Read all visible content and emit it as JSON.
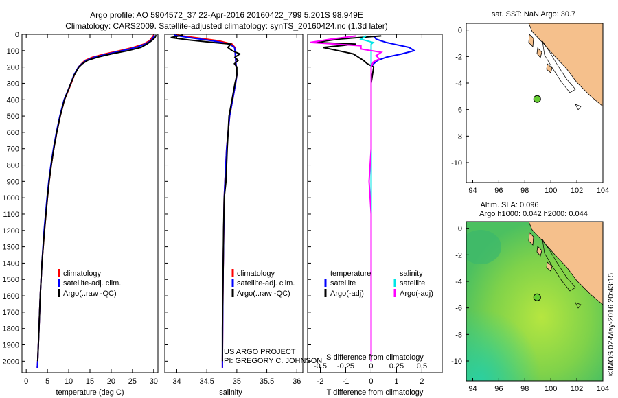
{
  "header": {
    "line1": "Argo profile: AO 5904572_37 22-Apr-2016 20160422_799 5.201S 98.949E",
    "line2": "Climatology: CARS2009. Satellite-adjusted climatology: synTS_20160424.nc (1.3d later)"
  },
  "colors": {
    "climatology": "#ff0000",
    "satellite": "#0000ff",
    "argo": "#000000",
    "sat_s": "#00e5e5",
    "argo_s": "#ff00ff",
    "land": "#f5c08c",
    "marker": "#66cc33"
  },
  "chart_data": [
    {
      "type": "line",
      "id": "temperature",
      "xlabel": "temperature (deg C)",
      "ylabel": "",
      "xlim": [
        -1,
        31
      ],
      "ylim": [
        2070,
        0
      ],
      "xticks": [
        "0",
        "5",
        "10",
        "15",
        "20",
        "25",
        "30"
      ],
      "yticks": [
        "0",
        "100",
        "200",
        "300",
        "400",
        "500",
        "600",
        "700",
        "800",
        "900",
        "1000",
        "1100",
        "1200",
        "1300",
        "1400",
        "1500",
        "1600",
        "1700",
        "1800",
        "1900",
        "2000"
      ],
      "legend": [
        "climatology",
        "satellite-adj. clim.",
        "Argo(..raw -QC)"
      ],
      "series": [
        {
          "name": "climatology",
          "color": "#ff0000",
          "depth": [
            5,
            20,
            40,
            60,
            80,
            100,
            120,
            140,
            160,
            180,
            200,
            250,
            300,
            400,
            500,
            600,
            700,
            800,
            900,
            1000,
            1200,
            1400,
            1600,
            1800,
            2000,
            2040
          ],
          "values": [
            30.0,
            29.6,
            29.0,
            27.6,
            25.2,
            22.0,
            18.5,
            15.6,
            13.8,
            13.0,
            12.3,
            11.3,
            10.6,
            9.0,
            8.0,
            7.2,
            6.5,
            5.9,
            5.4,
            5.0,
            4.3,
            3.7,
            3.3,
            3.0,
            2.7,
            2.6
          ]
        },
        {
          "name": "satellite-adj. clim.",
          "color": "#0000ff",
          "depth": [
            5,
            20,
            40,
            60,
            80,
            100,
            120,
            140,
            160,
            180,
            200,
            250,
            300,
            400,
            500,
            600,
            700,
            800,
            900,
            1000,
            1200,
            1400,
            1600,
            1800,
            2000,
            2040
          ],
          "values": [
            30.2,
            29.9,
            29.3,
            28.0,
            25.8,
            22.6,
            19.2,
            16.1,
            14.1,
            13.1,
            12.3,
            11.2,
            10.5,
            8.9,
            7.9,
            7.1,
            6.4,
            5.8,
            5.3,
            4.9,
            4.2,
            3.7,
            3.3,
            3.0,
            2.7,
            2.6
          ]
        },
        {
          "name": "Argo(..raw -QC)",
          "color": "#000000",
          "depth": [
            5,
            20,
            40,
            60,
            80,
            100,
            120,
            140,
            160,
            180,
            200,
            250,
            300,
            400,
            500,
            600,
            700,
            800,
            900,
            1000,
            1200,
            1400,
            1600,
            1800,
            2000
          ],
          "values": [
            30.6,
            30.3,
            29.5,
            28.4,
            27.0,
            24.0,
            20.0,
            16.8,
            14.4,
            13.2,
            12.4,
            11.3,
            10.5,
            9.0,
            8.0,
            7.2,
            6.5,
            5.9,
            5.4,
            5.0,
            4.3,
            3.7,
            3.3,
            3.0,
            2.7
          ]
        }
      ]
    },
    {
      "type": "line",
      "id": "salinity",
      "xlabel": "salinity",
      "xlim": [
        33.8,
        36.1
      ],
      "ylim": [
        2070,
        0
      ],
      "xticks": [
        "34",
        "34.5",
        "35",
        "35.5",
        "36"
      ],
      "legend": [
        "climatology",
        "satellite-adj. clim.",
        "Argo(..raw -QC)"
      ],
      "annotation": [
        "US ARGO PROJECT",
        "PI: GREGORY C. JOHNSON"
      ],
      "series": [
        {
          "name": "climatology",
          "color": "#ff0000",
          "depth": [
            5,
            20,
            40,
            60,
            80,
            100,
            150,
            200,
            250,
            300,
            400,
            500,
            700,
            1000,
            1500,
            2000,
            2040
          ],
          "values": [
            34.0,
            34.3,
            34.7,
            34.92,
            34.97,
            34.97,
            34.98,
            34.99,
            35.0,
            34.98,
            34.93,
            34.88,
            34.83,
            34.79,
            34.77,
            34.76,
            34.76
          ]
        },
        {
          "name": "satellite-adj. clim.",
          "color": "#0000ff",
          "depth": [
            5,
            20,
            40,
            60,
            80,
            100,
            150,
            200,
            250,
            300,
            400,
            500,
            700,
            1000,
            1500,
            2000,
            2040
          ],
          "values": [
            33.95,
            34.2,
            34.6,
            34.88,
            34.96,
            34.97,
            34.98,
            34.99,
            35.0,
            34.98,
            34.93,
            34.88,
            34.83,
            34.79,
            34.77,
            34.76,
            34.76
          ]
        },
        {
          "name": "Argo(..raw -QC)",
          "color": "#000000",
          "depth": [
            5,
            20,
            35,
            50,
            60,
            80,
            100,
            120,
            140,
            160,
            180,
            200,
            250,
            300,
            400,
            500,
            700,
            900,
            1000,
            1200,
            1500,
            1800,
            2000
          ],
          "values": [
            34.1,
            33.9,
            34.2,
            34.6,
            34.9,
            34.85,
            34.92,
            35.05,
            34.97,
            35.02,
            34.96,
            35.0,
            35.0,
            34.97,
            34.92,
            34.87,
            34.84,
            34.82,
            34.79,
            34.78,
            34.77,
            34.76,
            34.76
          ]
        }
      ]
    },
    {
      "type": "line",
      "id": "difference",
      "xlabel": "T difference from climatology",
      "title_inner": "S difference from climatology",
      "xlim": [
        -2.5,
        2.8
      ],
      "ylim": [
        2070,
        0
      ],
      "xticks": [
        "-2",
        "-1",
        "0",
        "1",
        "2"
      ],
      "xticks_top": [
        "-0.5",
        "-0.25",
        "0",
        "0.25",
        "0.5"
      ],
      "legend_headers": [
        "temperature",
        "salinity"
      ],
      "legend": [
        "satellite",
        "Argo(-adj)",
        "satellite",
        "Argo(-adj)"
      ],
      "series": [
        {
          "name": "T satellite",
          "color": "#0000ff",
          "depth": [
            10,
            30,
            50,
            60,
            80,
            100,
            120,
            140,
            160,
            180,
            200,
            300,
            500,
            1000,
            1500,
            2000
          ],
          "values": [
            0.1,
            0.2,
            0.6,
            0.9,
            1.5,
            1.7,
            1.2,
            0.6,
            0.25,
            0.1,
            0.0,
            0.0,
            0.0,
            0.0,
            0.0,
            0.0
          ]
        },
        {
          "name": "T Argo(-adj)",
          "color": "#000000",
          "depth": [
            10,
            30,
            50,
            60,
            80,
            100,
            120,
            140,
            160,
            180,
            200,
            300,
            500,
            800,
            1000,
            1500,
            2000
          ],
          "values": [
            0.4,
            -1.3,
            -2.2,
            -0.6,
            -1.9,
            -1.3,
            -0.7,
            -0.5,
            -0.3,
            -0.15,
            0.1,
            0.0,
            0.0,
            0.0,
            0.0,
            0.0,
            0.0
          ]
        },
        {
          "name": "S satellite",
          "color": "#00e5e5",
          "depth": [
            10,
            30,
            50,
            60,
            80,
            100,
            150,
            200,
            500,
            1000,
            1500,
            2000
          ],
          "values": [
            -0.05,
            -0.1,
            0.02,
            0.0,
            0.0,
            0.0,
            0.0,
            0.0,
            0.0,
            0.0,
            0.0,
            0.0
          ]
        },
        {
          "name": "S Argo(-adj)",
          "color": "#ff00ff",
          "depth": [
            10,
            30,
            50,
            70,
            90,
            110,
            130,
            150,
            170,
            200,
            400,
            700,
            900,
            1100,
            1300,
            2000
          ],
          "values": [
            -0.15,
            -0.4,
            -0.6,
            -0.1,
            -0.1,
            0.1,
            0.05,
            0.08,
            0.02,
            0.0,
            0.0,
            0.0,
            -0.02,
            0.0,
            0.0,
            0.0
          ]
        }
      ]
    },
    {
      "type": "map",
      "id": "sst-map",
      "title": "sat. SST: NaN Argo: 30.7",
      "xlim": [
        93.5,
        104
      ],
      "ylim": [
        -11.5,
        0.5
      ],
      "xticks": [
        "94",
        "96",
        "98",
        "100",
        "102",
        "104"
      ],
      "yticks": [
        "0",
        "-2",
        "-4",
        "-6",
        "-8",
        "-10"
      ],
      "argo_position": [
        98.949,
        -5.201
      ]
    },
    {
      "type": "map",
      "id": "sla-map",
      "title1": "Altim. SLA: 0.096",
      "title2": "Argo h1000: 0.042 h2000: 0.044",
      "xlim": [
        93.5,
        104
      ],
      "ylim": [
        -11.5,
        0.5
      ],
      "xticks": [
        "94",
        "96",
        "98",
        "100",
        "102",
        "104"
      ],
      "yticks": [
        "0",
        "-2",
        "-4",
        "-6",
        "-8",
        "-10"
      ],
      "argo_position": [
        98.949,
        -5.201
      ]
    }
  ],
  "footer": {
    "timestamp": "©IMOS 02-May-2016 20:43:15"
  }
}
